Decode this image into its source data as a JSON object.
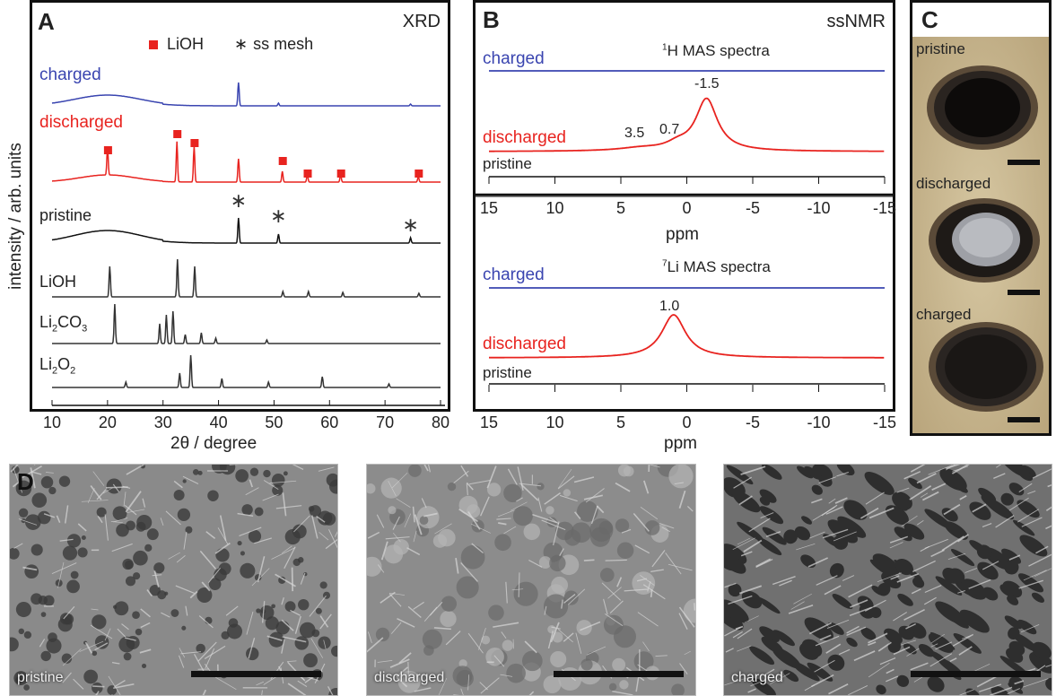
{
  "panel_a": {
    "letter": "A",
    "tag": "XRD",
    "legend_lioh": "LiOH",
    "legend_mesh": "ss mesh",
    "legend_mesh_symbol": "∗",
    "ylabel": "intensity / arb. units",
    "xlabel": "2θ / degree",
    "xticks": [
      "10",
      "20",
      "30",
      "40",
      "50",
      "60",
      "70",
      "80"
    ],
    "traces": [
      {
        "label": "charged",
        "color": "#3a45b0"
      },
      {
        "label": "discharged",
        "color": "#e8231f"
      },
      {
        "label": "pristine",
        "color": "#111111"
      },
      {
        "label": "LiOH",
        "color": "#333333"
      },
      {
        "label": "Li2CO3",
        "base": "Li",
        "sub1": "2",
        "mid": "CO",
        "sub2": "3",
        "color": "#333333"
      },
      {
        "label": "Li2O2",
        "base": "Li",
        "sub1": "2",
        "mid": "O",
        "sub2": "2",
        "color": "#333333"
      }
    ]
  },
  "panel_b": {
    "letter": "B",
    "tag": "ssNMR",
    "h_title_sup": "1",
    "h_title": "H MAS spectra",
    "li_title_sup": "7",
    "li_title": "Li MAS spectra",
    "xlabel": "ppm",
    "xticks": [
      "15",
      "10",
      "5",
      "0",
      "-5",
      "-10",
      "-15"
    ],
    "h_peaks": [
      "-1.5",
      "0.7",
      "3.5"
    ],
    "li_peak": "1.0",
    "labels": {
      "charged": "charged",
      "discharged": "discharged",
      "pristine": "pristine"
    },
    "colors": {
      "charged": "#3a45b0",
      "discharged": "#e8231f",
      "pristine": "#333333"
    }
  },
  "panel_c": {
    "letter": "C",
    "photos": [
      "pristine",
      "discharged",
      "charged"
    ]
  },
  "panel_d": {
    "letter": "D",
    "images": [
      "pristine",
      "discharged",
      "charged"
    ]
  },
  "chart_data": [
    {
      "type": "line",
      "title": "XRD",
      "xlabel": "2θ / degree",
      "ylabel": "intensity / arb. units",
      "xlim": [
        10,
        80
      ],
      "series": [
        {
          "name": "charged",
          "peaks_2theta": [
            43.6,
            50.8,
            74.6
          ]
        },
        {
          "name": "discharged",
          "peaks_2theta": [
            20.0,
            32.5,
            35.6,
            43.6,
            51.5,
            56.0,
            62.0,
            76.0
          ]
        },
        {
          "name": "pristine",
          "peaks_2theta": [
            43.6,
            50.8,
            74.6
          ]
        },
        {
          "name": "LiOH",
          "peaks_2theta": [
            20.4,
            32.6,
            35.7,
            51.6,
            56.2,
            62.4,
            76.1
          ]
        },
        {
          "name": "Li2CO3",
          "peaks_2theta": [
            21.3,
            29.4,
            30.6,
            31.8,
            34.0,
            36.9,
            39.5,
            48.7
          ]
        },
        {
          "name": "Li2O2",
          "peaks_2theta": [
            23.3,
            33.0,
            35.0,
            40.6,
            49.0,
            58.7,
            70.7
          ]
        }
      ]
    },
    {
      "type": "line",
      "title": "1H MAS spectra",
      "xlabel": "ppm",
      "xlim": [
        15,
        -15
      ],
      "series": [
        {
          "name": "charged",
          "peaks_ppm": []
        },
        {
          "name": "discharged",
          "peaks_ppm": [
            -1.5,
            0.7,
            3.5
          ]
        },
        {
          "name": "pristine",
          "peaks_ppm": []
        }
      ]
    },
    {
      "type": "line",
      "title": "7Li MAS spectra",
      "xlabel": "ppm",
      "xlim": [
        15,
        -15
      ],
      "series": [
        {
          "name": "charged",
          "peaks_ppm": []
        },
        {
          "name": "discharged",
          "peaks_ppm": [
            1.0
          ]
        },
        {
          "name": "pristine",
          "peaks_ppm": []
        }
      ]
    }
  ]
}
